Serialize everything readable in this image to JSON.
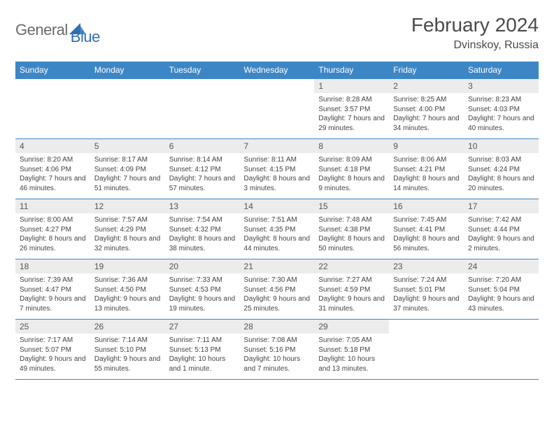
{
  "brand": {
    "word1": "General",
    "word2": "Blue",
    "blue": "#2f6fb3",
    "gray": "#6b6b6b"
  },
  "title": "February 2024",
  "location": "Dvinskoy, Russia",
  "header_bg": "#3d86c6",
  "daynum_bg": "#ececec",
  "weekdays": [
    "Sunday",
    "Monday",
    "Tuesday",
    "Wednesday",
    "Thursday",
    "Friday",
    "Saturday"
  ],
  "weeks": [
    [
      null,
      null,
      null,
      null,
      {
        "n": "1",
        "sr": "8:28 AM",
        "ss": "3:57 PM",
        "dl": "7 hours and 29 minutes."
      },
      {
        "n": "2",
        "sr": "8:25 AM",
        "ss": "4:00 PM",
        "dl": "7 hours and 34 minutes."
      },
      {
        "n": "3",
        "sr": "8:23 AM",
        "ss": "4:03 PM",
        "dl": "7 hours and 40 minutes."
      }
    ],
    [
      {
        "n": "4",
        "sr": "8:20 AM",
        "ss": "4:06 PM",
        "dl": "7 hours and 46 minutes."
      },
      {
        "n": "5",
        "sr": "8:17 AM",
        "ss": "4:09 PM",
        "dl": "7 hours and 51 minutes."
      },
      {
        "n": "6",
        "sr": "8:14 AM",
        "ss": "4:12 PM",
        "dl": "7 hours and 57 minutes."
      },
      {
        "n": "7",
        "sr": "8:11 AM",
        "ss": "4:15 PM",
        "dl": "8 hours and 3 minutes."
      },
      {
        "n": "8",
        "sr": "8:09 AM",
        "ss": "4:18 PM",
        "dl": "8 hours and 9 minutes."
      },
      {
        "n": "9",
        "sr": "8:06 AM",
        "ss": "4:21 PM",
        "dl": "8 hours and 14 minutes."
      },
      {
        "n": "10",
        "sr": "8:03 AM",
        "ss": "4:24 PM",
        "dl": "8 hours and 20 minutes."
      }
    ],
    [
      {
        "n": "11",
        "sr": "8:00 AM",
        "ss": "4:27 PM",
        "dl": "8 hours and 26 minutes."
      },
      {
        "n": "12",
        "sr": "7:57 AM",
        "ss": "4:29 PM",
        "dl": "8 hours and 32 minutes."
      },
      {
        "n": "13",
        "sr": "7:54 AM",
        "ss": "4:32 PM",
        "dl": "8 hours and 38 minutes."
      },
      {
        "n": "14",
        "sr": "7:51 AM",
        "ss": "4:35 PM",
        "dl": "8 hours and 44 minutes."
      },
      {
        "n": "15",
        "sr": "7:48 AM",
        "ss": "4:38 PM",
        "dl": "8 hours and 50 minutes."
      },
      {
        "n": "16",
        "sr": "7:45 AM",
        "ss": "4:41 PM",
        "dl": "8 hours and 56 minutes."
      },
      {
        "n": "17",
        "sr": "7:42 AM",
        "ss": "4:44 PM",
        "dl": "9 hours and 2 minutes."
      }
    ],
    [
      {
        "n": "18",
        "sr": "7:39 AM",
        "ss": "4:47 PM",
        "dl": "9 hours and 7 minutes."
      },
      {
        "n": "19",
        "sr": "7:36 AM",
        "ss": "4:50 PM",
        "dl": "9 hours and 13 minutes."
      },
      {
        "n": "20",
        "sr": "7:33 AM",
        "ss": "4:53 PM",
        "dl": "9 hours and 19 minutes."
      },
      {
        "n": "21",
        "sr": "7:30 AM",
        "ss": "4:56 PM",
        "dl": "9 hours and 25 minutes."
      },
      {
        "n": "22",
        "sr": "7:27 AM",
        "ss": "4:59 PM",
        "dl": "9 hours and 31 minutes."
      },
      {
        "n": "23",
        "sr": "7:24 AM",
        "ss": "5:01 PM",
        "dl": "9 hours and 37 minutes."
      },
      {
        "n": "24",
        "sr": "7:20 AM",
        "ss": "5:04 PM",
        "dl": "9 hours and 43 minutes."
      }
    ],
    [
      {
        "n": "25",
        "sr": "7:17 AM",
        "ss": "5:07 PM",
        "dl": "9 hours and 49 minutes."
      },
      {
        "n": "26",
        "sr": "7:14 AM",
        "ss": "5:10 PM",
        "dl": "9 hours and 55 minutes."
      },
      {
        "n": "27",
        "sr": "7:11 AM",
        "ss": "5:13 PM",
        "dl": "10 hours and 1 minute."
      },
      {
        "n": "28",
        "sr": "7:08 AM",
        "ss": "5:16 PM",
        "dl": "10 hours and 7 minutes."
      },
      {
        "n": "29",
        "sr": "7:05 AM",
        "ss": "5:18 PM",
        "dl": "10 hours and 13 minutes."
      },
      null,
      null
    ]
  ],
  "labels": {
    "sunrise": "Sunrise: ",
    "sunset": "Sunset: ",
    "daylight": "Daylight: "
  }
}
